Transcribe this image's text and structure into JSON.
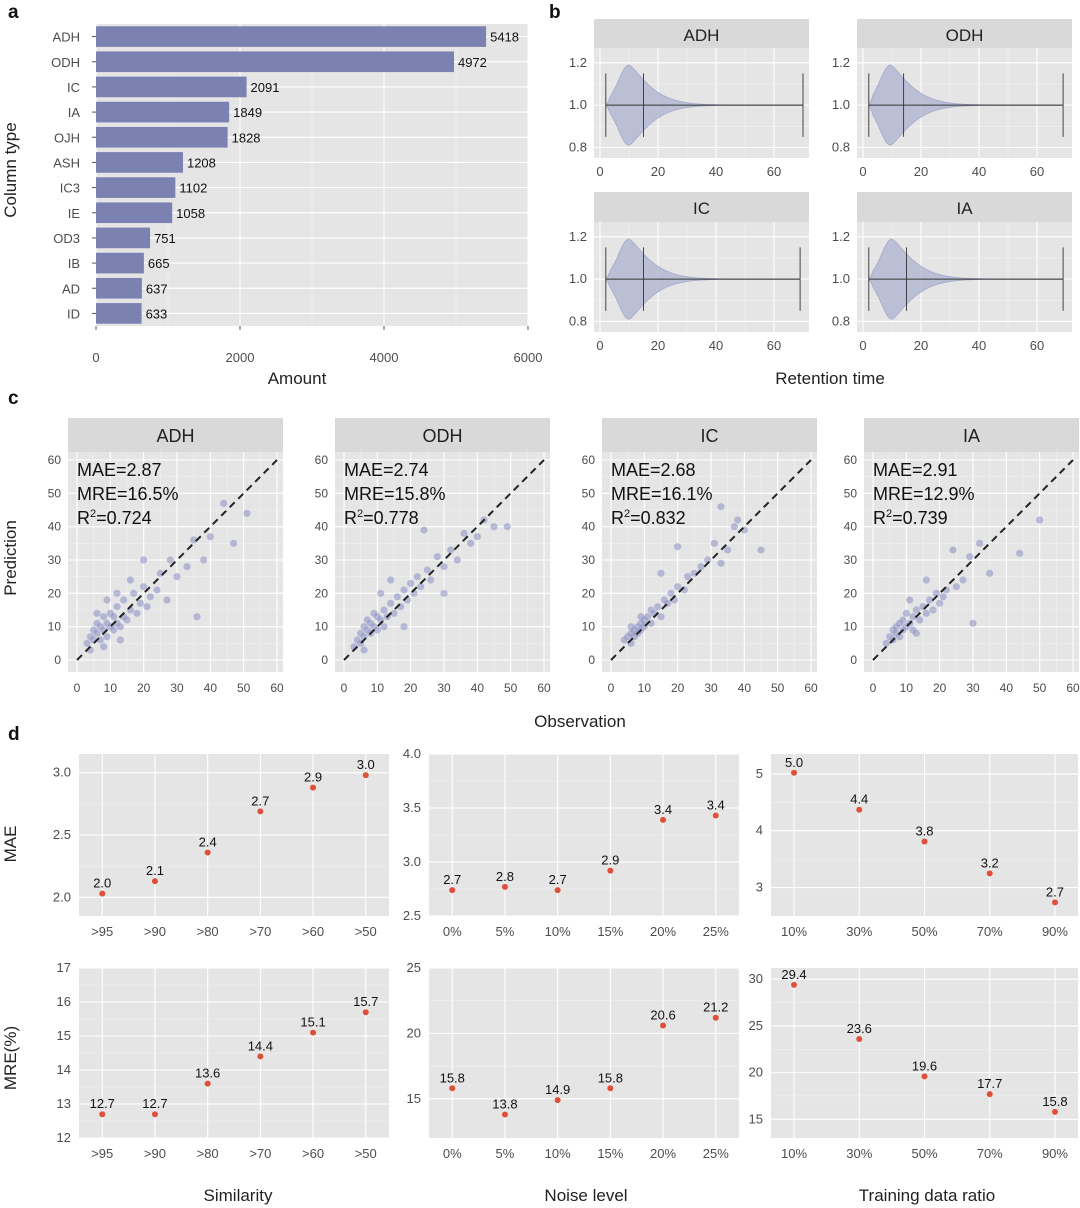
{
  "colors": {
    "panel_bg": "#e5e5e5",
    "strip_bg": "#d9d9d9",
    "grid": "#ffffff",
    "bar": "#7b81b0",
    "violin": "#b4b8d3",
    "point": "#8a8fc4",
    "red_point": "#e04f3a",
    "text": "#222222",
    "tick_text": "#4d4d4d"
  },
  "panel_letters": [
    "a",
    "b",
    "c",
    "d"
  ],
  "panel_a": {
    "xlabel": "Amount",
    "ylabel": "Column type",
    "chart_data": {
      "type": "bar",
      "orientation": "horizontal",
      "categories": [
        "ADH",
        "ODH",
        "IC",
        "IA",
        "OJH",
        "ASH",
        "IC3",
        "IE",
        "OD3",
        "IB",
        "AD",
        "ID"
      ],
      "values": [
        5418,
        4972,
        2091,
        1849,
        1828,
        1208,
        1102,
        1058,
        751,
        665,
        637,
        633
      ],
      "xlim": [
        0,
        6000
      ],
      "xticks": [
        0,
        2000,
        4000,
        6000
      ],
      "grid": true
    }
  },
  "panel_b": {
    "xlabel": "Retention time",
    "chart_data": {
      "type": "violin",
      "xlim": [
        0,
        70
      ],
      "ylim": [
        0.75,
        1.27
      ],
      "xticks": [
        0,
        20,
        40,
        60
      ],
      "yticks": [
        0.8,
        1.0,
        1.2
      ],
      "yticklabels": [
        "0.8",
        "1.0",
        "1.2"
      ],
      "facets": [
        {
          "title": "ADH",
          "range": [
            2,
            70
          ],
          "median": 15,
          "mode": 10,
          "max_halfwidth": 0.19
        },
        {
          "title": "ODH",
          "range": [
            2,
            69
          ],
          "median": 14,
          "mode": 9.5,
          "max_halfwidth": 0.19
        },
        {
          "title": "IC",
          "range": [
            2,
            69
          ],
          "median": 15,
          "mode": 10,
          "max_halfwidth": 0.19
        },
        {
          "title": "IA",
          "range": [
            2,
            69
          ],
          "median": 15,
          "mode": 10,
          "max_halfwidth": 0.19
        }
      ]
    }
  },
  "panel_c": {
    "xlabel": "Observation",
    "ylabel": "Prediction",
    "chart_data": {
      "type": "scatter",
      "xlim": [
        0,
        60
      ],
      "ylim": [
        0,
        60
      ],
      "ticks": [
        0,
        10,
        20,
        30,
        40,
        50,
        60
      ],
      "reference_line": "y = x",
      "facets": [
        {
          "title": "ADH",
          "mae": "MAE=2.87",
          "mre": "MRE=16.5%",
          "r2_prefix": "R",
          "r2_sup": "2",
          "r2_value": "=0.724",
          "points": [
            [
              3,
              5
            ],
            [
              4,
              7
            ],
            [
              5,
              6
            ],
            [
              5,
              9
            ],
            [
              6,
              8
            ],
            [
              6,
              11
            ],
            [
              7,
              6
            ],
            [
              7,
              10
            ],
            [
              8,
              9
            ],
            [
              8,
              13
            ],
            [
              9,
              7
            ],
            [
              9,
              11
            ],
            [
              10,
              10
            ],
            [
              10,
              14
            ],
            [
              11,
              9
            ],
            [
              11,
              13
            ],
            [
              12,
              11
            ],
            [
              12,
              16
            ],
            [
              13,
              10
            ],
            [
              14,
              13
            ],
            [
              14,
              18
            ],
            [
              15,
              12
            ],
            [
              16,
              15
            ],
            [
              17,
              20
            ],
            [
              18,
              14
            ],
            [
              19,
              17
            ],
            [
              20,
              22
            ],
            [
              21,
              16
            ],
            [
              22,
              19
            ],
            [
              24,
              21
            ],
            [
              25,
              26
            ],
            [
              27,
              18
            ],
            [
              28,
              30
            ],
            [
              30,
              25
            ],
            [
              33,
              28
            ],
            [
              35,
              36
            ],
            [
              36,
              13
            ],
            [
              38,
              30
            ],
            [
              40,
              37
            ],
            [
              44,
              47
            ],
            [
              47,
              35
            ],
            [
              51,
              44
            ],
            [
              6,
              14
            ],
            [
              8,
              4
            ],
            [
              12,
              20
            ],
            [
              16,
              24
            ],
            [
              9,
              18
            ],
            [
              20,
              30
            ],
            [
              4,
              3
            ],
            [
              13,
              6
            ]
          ]
        },
        {
          "title": "ODH",
          "mae": "MAE=2.74",
          "mre": "MRE=15.8%",
          "r2_prefix": "R",
          "r2_sup": "2",
          "r2_value": "=0.778",
          "points": [
            [
              3,
              4
            ],
            [
              4,
              6
            ],
            [
              5,
              5
            ],
            [
              5,
              8
            ],
            [
              6,
              7
            ],
            [
              6,
              10
            ],
            [
              7,
              9
            ],
            [
              7,
              12
            ],
            [
              8,
              8
            ],
            [
              8,
              11
            ],
            [
              9,
              10
            ],
            [
              9,
              14
            ],
            [
              10,
              9
            ],
            [
              10,
              13
            ],
            [
              11,
              12
            ],
            [
              12,
              15
            ],
            [
              12,
              10
            ],
            [
              13,
              13
            ],
            [
              14,
              17
            ],
            [
              15,
              14
            ],
            [
              16,
              19
            ],
            [
              17,
              16
            ],
            [
              18,
              21
            ],
            [
              19,
              18
            ],
            [
              20,
              23
            ],
            [
              21,
              20
            ],
            [
              22,
              25
            ],
            [
              23,
              22
            ],
            [
              25,
              27
            ],
            [
              26,
              24
            ],
            [
              28,
              31
            ],
            [
              30,
              28
            ],
            [
              32,
              33
            ],
            [
              34,
              30
            ],
            [
              36,
              38
            ],
            [
              38,
              35
            ],
            [
              40,
              37
            ],
            [
              42,
              42
            ],
            [
              45,
              40
            ],
            [
              49,
              40
            ],
            [
              24,
              39
            ],
            [
              18,
              10
            ],
            [
              6,
              3
            ],
            [
              14,
              24
            ],
            [
              30,
              20
            ],
            [
              11,
              20
            ]
          ]
        },
        {
          "title": "IC",
          "mae": "MAE=2.68",
          "mre": "MRE=16.1%",
          "r2_prefix": "R",
          "r2_sup": "2",
          "r2_value": "=0.832",
          "points": [
            [
              4,
              6
            ],
            [
              5,
              7
            ],
            [
              6,
              8
            ],
            [
              6,
              5
            ],
            [
              7,
              9
            ],
            [
              7,
              7
            ],
            [
              8,
              10
            ],
            [
              8,
              8
            ],
            [
              9,
              11
            ],
            [
              9,
              9
            ],
            [
              10,
              12
            ],
            [
              10,
              10
            ],
            [
              11,
              13
            ],
            [
              12,
              11
            ],
            [
              12,
              15
            ],
            [
              13,
              14
            ],
            [
              14,
              16
            ],
            [
              15,
              13
            ],
            [
              16,
              18
            ],
            [
              17,
              17
            ],
            [
              18,
              20
            ],
            [
              19,
              18
            ],
            [
              20,
              22
            ],
            [
              22,
              21
            ],
            [
              23,
              25
            ],
            [
              25,
              26
            ],
            [
              27,
              28
            ],
            [
              29,
              30
            ],
            [
              31,
              35
            ],
            [
              33,
              29
            ],
            [
              35,
              33
            ],
            [
              37,
              40
            ],
            [
              38,
              42
            ],
            [
              40,
              39
            ],
            [
              45,
              33
            ],
            [
              33,
              46
            ],
            [
              20,
              34
            ],
            [
              15,
              26
            ],
            [
              9,
              13
            ],
            [
              6,
              10
            ]
          ]
        },
        {
          "title": "IA",
          "mae": "MAE=2.91",
          "mre": "MRE=12.9%",
          "r2_prefix": "R",
          "r2_sup": "2",
          "r2_value": "=0.739",
          "points": [
            [
              4,
              5
            ],
            [
              5,
              7
            ],
            [
              6,
              6
            ],
            [
              6,
              9
            ],
            [
              7,
              8
            ],
            [
              7,
              10
            ],
            [
              8,
              7
            ],
            [
              8,
              11
            ],
            [
              9,
              9
            ],
            [
              9,
              12
            ],
            [
              10,
              10
            ],
            [
              10,
              14
            ],
            [
              11,
              11
            ],
            [
              12,
              13
            ],
            [
              12,
              9
            ],
            [
              13,
              15
            ],
            [
              14,
              12
            ],
            [
              15,
              16
            ],
            [
              16,
              14
            ],
            [
              17,
              18
            ],
            [
              18,
              15
            ],
            [
              19,
              20
            ],
            [
              20,
              17
            ],
            [
              21,
              19
            ],
            [
              22,
              21
            ],
            [
              24,
              33
            ],
            [
              25,
              22
            ],
            [
              27,
              24
            ],
            [
              29,
              31
            ],
            [
              30,
              11
            ],
            [
              32,
              35
            ],
            [
              35,
              26
            ],
            [
              44,
              32
            ],
            [
              50,
              42
            ],
            [
              16,
              24
            ],
            [
              11,
              18
            ],
            [
              13,
              8
            ]
          ]
        }
      ]
    }
  },
  "panel_d": {
    "ylabels": [
      "MAE",
      "MRE(%)"
    ],
    "xlabels": [
      "Similarity",
      "Noise level",
      "Training data ratio"
    ],
    "chart_data": [
      {
        "type": "scatter",
        "metric": "MAE",
        "categories": [
          ">95",
          ">90",
          ">80",
          ">70",
          ">60",
          ">50"
        ],
        "values": [
          2.03,
          2.13,
          2.36,
          2.69,
          2.88,
          2.98
        ],
        "labels": [
          "2.0",
          "2.1",
          "2.4",
          "2.7",
          "2.9",
          "3.0"
        ],
        "ylim": [
          1.85,
          3.15
        ],
        "yticks": [
          2.0,
          2.5,
          3.0
        ],
        "yticklabels": [
          "2.0",
          "2.5",
          "3.0"
        ]
      },
      {
        "type": "scatter",
        "metric": "MAE",
        "categories": [
          "0%",
          "5%",
          "10%",
          "15%",
          "20%",
          "25%"
        ],
        "values": [
          2.74,
          2.77,
          2.74,
          2.92,
          3.39,
          3.43
        ],
        "labels": [
          "2.7",
          "2.8",
          "2.7",
          "2.9",
          "3.4",
          "3.4"
        ],
        "ylim": [
          2.5,
          4.0
        ],
        "yticks": [
          2.5,
          3.0,
          3.5,
          4.0
        ],
        "yticklabels": [
          "2.5",
          "3.0",
          "3.5",
          "4.0"
        ]
      },
      {
        "type": "scatter",
        "metric": "MAE",
        "categories": [
          "10%",
          "30%",
          "50%",
          "70%",
          "90%"
        ],
        "values": [
          5.02,
          4.37,
          3.81,
          3.25,
          2.74
        ],
        "labels": [
          "5.0",
          "4.4",
          "3.8",
          "3.2",
          "2.7"
        ],
        "ylim": [
          2.5,
          5.35
        ],
        "yticks": [
          3,
          4,
          5
        ],
        "yticklabels": [
          "3",
          "4",
          "5"
        ]
      },
      {
        "type": "scatter",
        "metric": "MRE(%)",
        "categories": [
          ">95",
          ">90",
          ">80",
          ">70",
          ">60",
          ">50"
        ],
        "values": [
          12.7,
          12.7,
          13.6,
          14.4,
          15.1,
          15.7
        ],
        "labels": [
          "12.7",
          "12.7",
          "13.6",
          "14.4",
          "15.1",
          "15.7"
        ],
        "ylim": [
          12.0,
          17.0
        ],
        "yticks": [
          12,
          13,
          14,
          15,
          16,
          17
        ],
        "yticklabels": [
          "12",
          "13",
          "14",
          "15",
          "16",
          "17"
        ]
      },
      {
        "type": "scatter",
        "metric": "MRE(%)",
        "categories": [
          "0%",
          "5%",
          "10%",
          "15%",
          "20%",
          "25%"
        ],
        "values": [
          15.8,
          13.8,
          14.9,
          15.8,
          20.6,
          21.2
        ],
        "labels": [
          "15.8",
          "13.8",
          "14.9",
          "15.8",
          "20.6",
          "21.2"
        ],
        "ylim": [
          12.0,
          25.0
        ],
        "yticks": [
          15,
          20,
          25
        ],
        "yticklabels": [
          "15",
          "20",
          "25"
        ]
      },
      {
        "type": "scatter",
        "metric": "MRE(%)",
        "categories": [
          "10%",
          "30%",
          "50%",
          "70%",
          "90%"
        ],
        "values": [
          29.4,
          23.6,
          19.6,
          17.7,
          15.8
        ],
        "labels": [
          "29.4",
          "23.6",
          "19.6",
          "17.7",
          "15.8"
        ],
        "ylim": [
          13.0,
          31.2
        ],
        "yticks": [
          15,
          20,
          25,
          30
        ],
        "yticklabels": [
          "15",
          "20",
          "25",
          "30"
        ]
      }
    ]
  }
}
